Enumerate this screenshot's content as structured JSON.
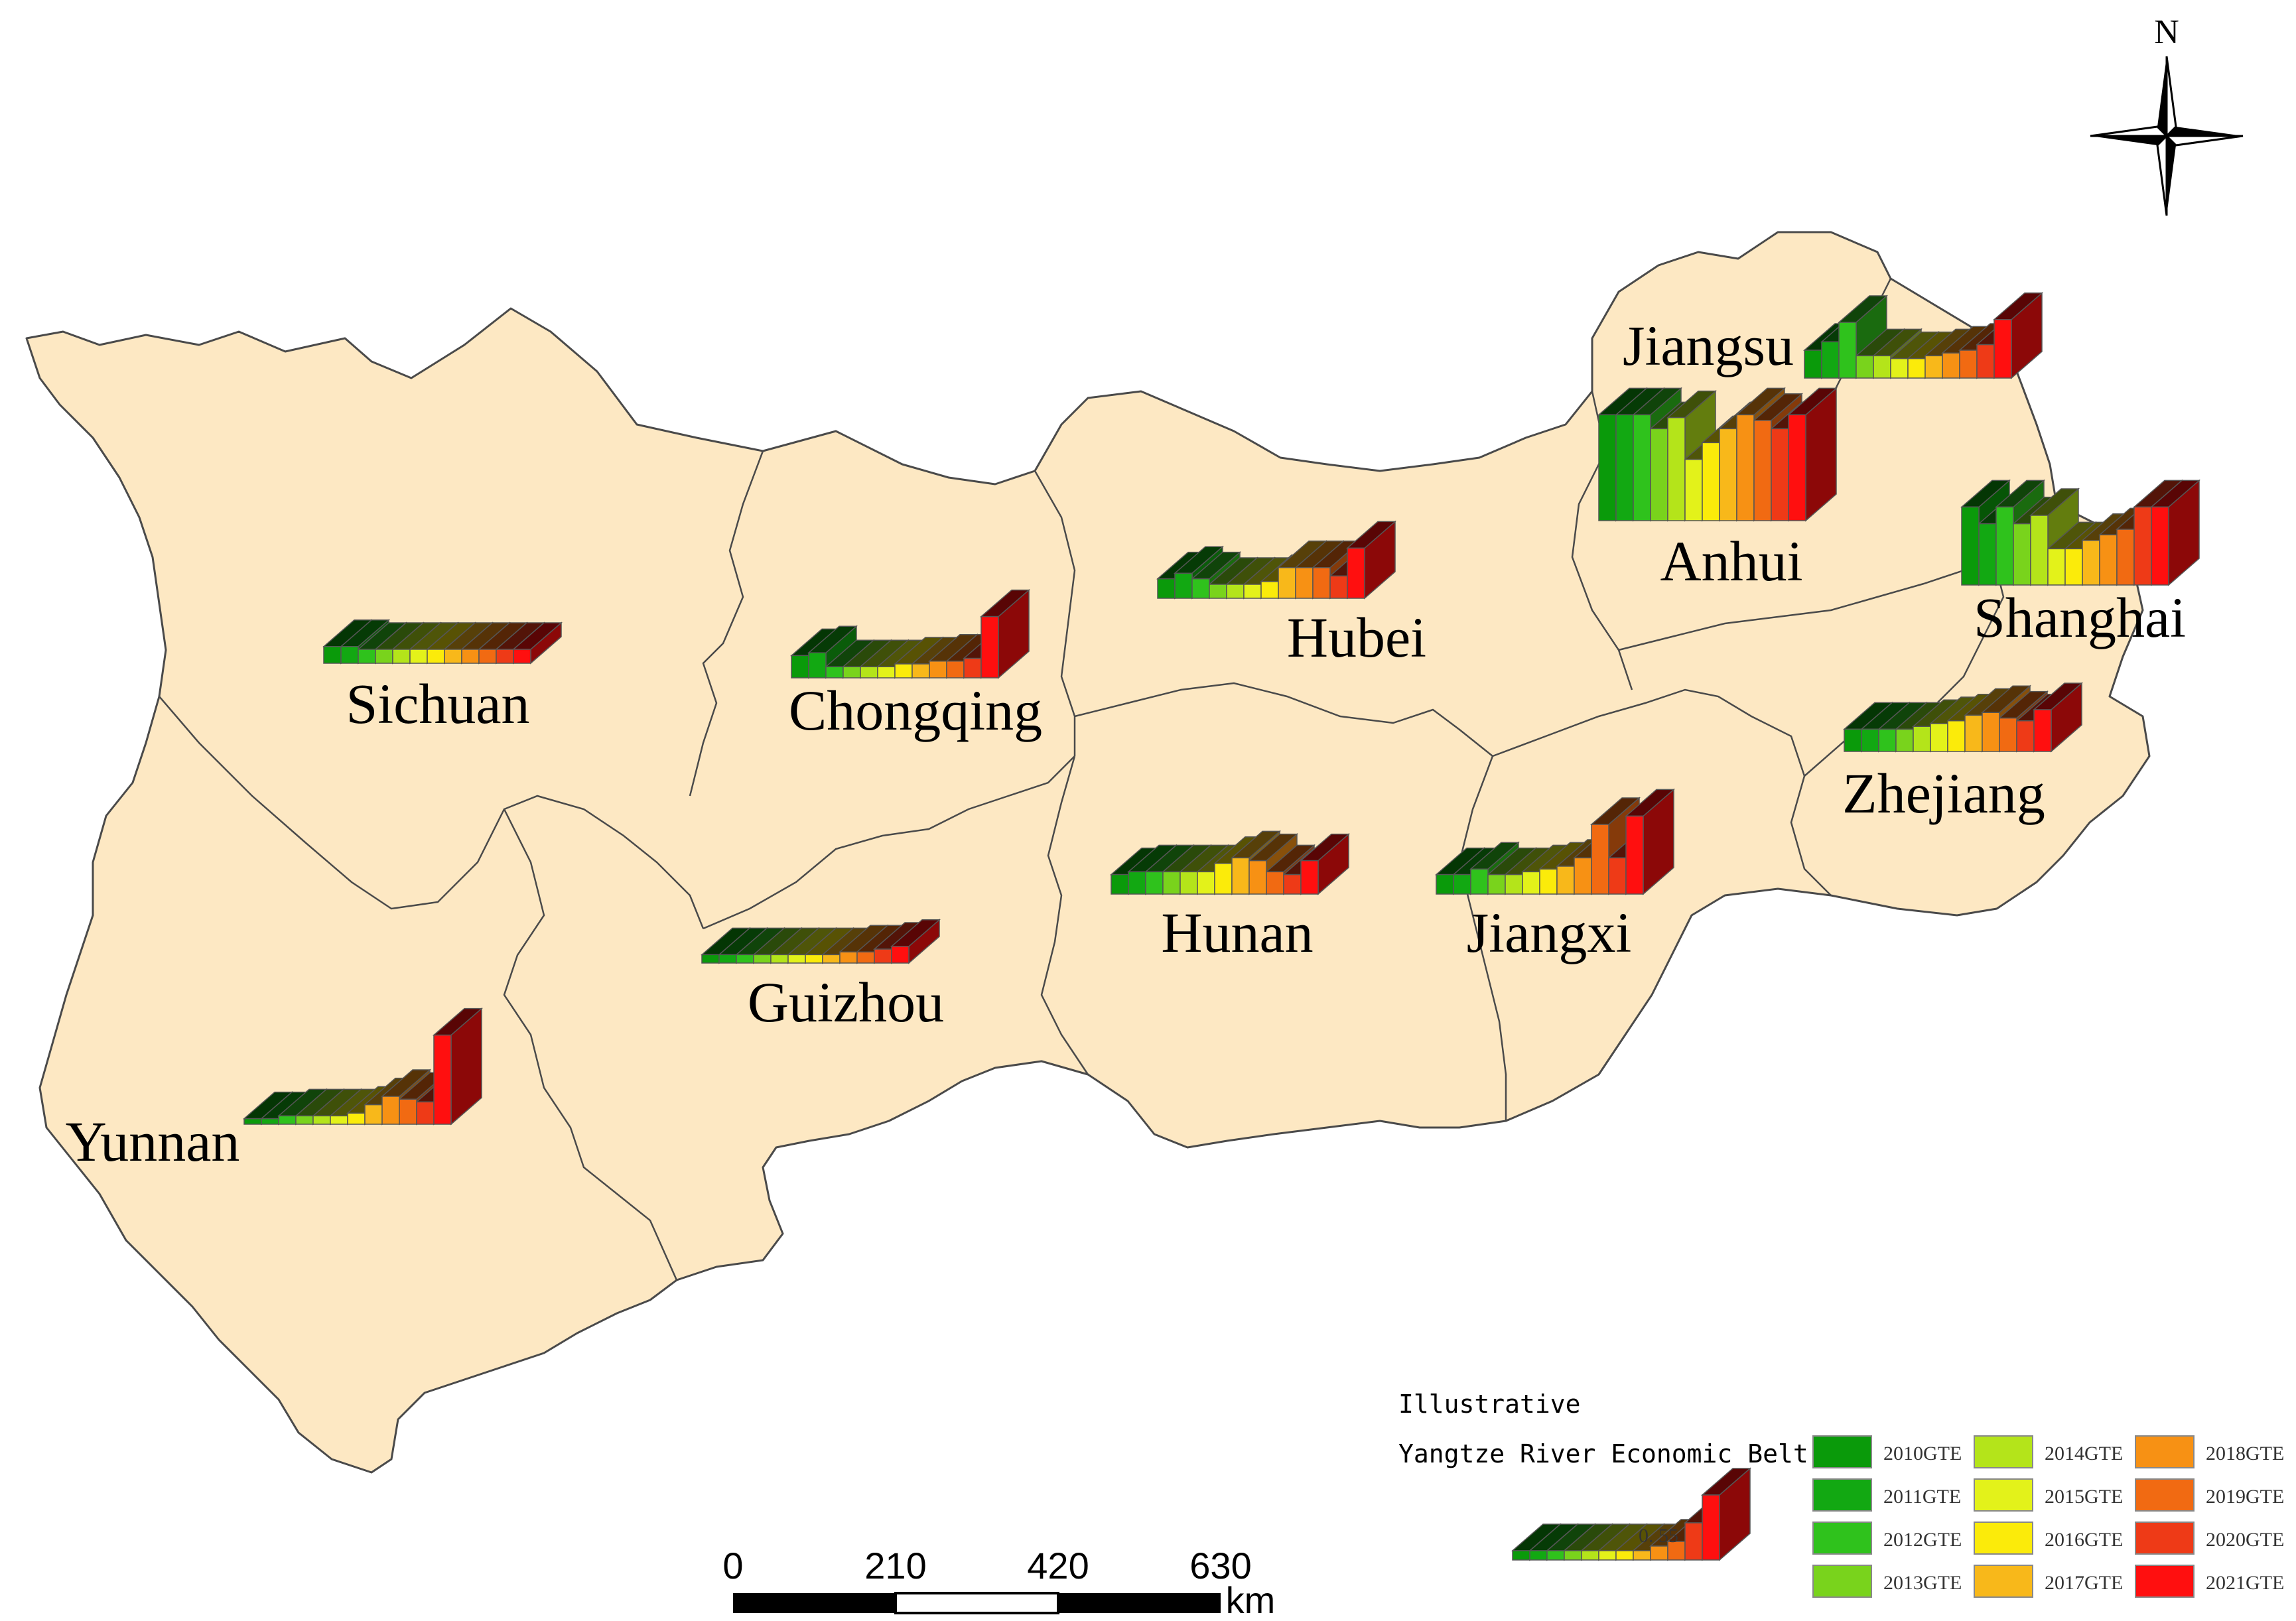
{
  "map": {
    "region_name": "Yangtze River Economic Belt",
    "provinces": [
      {
        "id": "sichuan",
        "label": "Sichuan",
        "values": [
          0.06,
          0.06,
          0.05,
          0.05,
          0.05,
          0.05,
          0.05,
          0.05,
          0.05,
          0.05,
          0.05,
          0.05
        ]
      },
      {
        "id": "chongqing",
        "label": "Chongqing",
        "values": [
          0.08,
          0.09,
          0.04,
          0.04,
          0.04,
          0.04,
          0.05,
          0.05,
          0.06,
          0.06,
          0.07,
          0.22
        ]
      },
      {
        "id": "hubei",
        "label": "Hubei",
        "values": [
          0.07,
          0.09,
          0.07,
          0.05,
          0.05,
          0.05,
          0.06,
          0.11,
          0.11,
          0.11,
          0.08,
          0.18
        ]
      },
      {
        "id": "anhui",
        "label": "Anhui",
        "values": [
          0.38,
          0.38,
          0.38,
          0.33,
          0.37,
          0.22,
          0.28,
          0.33,
          0.38,
          0.36,
          0.33,
          0.38
        ]
      },
      {
        "id": "jiangsu",
        "label": "Jiangsu",
        "values": [
          0.1,
          0.13,
          0.2,
          0.08,
          0.08,
          0.07,
          0.07,
          0.08,
          0.09,
          0.1,
          0.12,
          0.21
        ]
      },
      {
        "id": "shanghai",
        "label": "Shanghai",
        "values": [
          0.28,
          0.22,
          0.28,
          0.22,
          0.25,
          0.13,
          0.13,
          0.16,
          0.18,
          0.2,
          0.28,
          0.28
        ]
      },
      {
        "id": "zhejiang",
        "label": "Zhejiang",
        "values": [
          0.08,
          0.08,
          0.08,
          0.08,
          0.09,
          0.1,
          0.11,
          0.13,
          0.14,
          0.12,
          0.11,
          0.15
        ]
      },
      {
        "id": "hunan",
        "label": "Hunan",
        "values": [
          0.07,
          0.08,
          0.08,
          0.08,
          0.08,
          0.08,
          0.11,
          0.13,
          0.12,
          0.08,
          0.07,
          0.12
        ]
      },
      {
        "id": "jiangxi",
        "label": "Jiangxi",
        "values": [
          0.07,
          0.07,
          0.09,
          0.07,
          0.07,
          0.08,
          0.09,
          0.1,
          0.13,
          0.25,
          0.13,
          0.28
        ]
      },
      {
        "id": "guizhou",
        "label": "Guizhou",
        "values": [
          0.03,
          0.03,
          0.03,
          0.03,
          0.03,
          0.03,
          0.03,
          0.03,
          0.04,
          0.04,
          0.05,
          0.06
        ]
      },
      {
        "id": "yunnan",
        "label": "Yunnan",
        "values": [
          0.02,
          0.02,
          0.03,
          0.03,
          0.03,
          0.03,
          0.04,
          0.07,
          0.1,
          0.09,
          0.08,
          0.32
        ]
      }
    ]
  },
  "legend": {
    "title": "Illustrative",
    "subtitle": "Yangtze River Economic Belt",
    "sample_value": "0. 55",
    "series": [
      {
        "label": "2010GTE",
        "color": "#0a9a0a"
      },
      {
        "label": "2011GTE",
        "color": "#12a812"
      },
      {
        "label": "2012GTE",
        "color": "#2fc21c"
      },
      {
        "label": "2013GTE",
        "color": "#79d31c"
      },
      {
        "label": "2014GTE",
        "color": "#b4e41a"
      },
      {
        "label": "2015GTE",
        "color": "#e3f21a"
      },
      {
        "label": "2016GTE",
        "color": "#fbeb0a"
      },
      {
        "label": "2017GTE",
        "color": "#f8b81a"
      },
      {
        "label": "2018GTE",
        "color": "#f79114"
      },
      {
        "label": "2019GTE",
        "color": "#f16a12"
      },
      {
        "label": "2020GTE",
        "color": "#ee3a17"
      },
      {
        "label": "2021GTE",
        "color": "#ff0f0f"
      }
    ]
  },
  "scale_bar": {
    "ticks": [
      "0",
      "210",
      "420",
      "630"
    ],
    "unit": "km"
  },
  "north_arrow": {
    "label": "N"
  },
  "colors": {
    "land": "#fde8c3",
    "border": "#555555"
  }
}
